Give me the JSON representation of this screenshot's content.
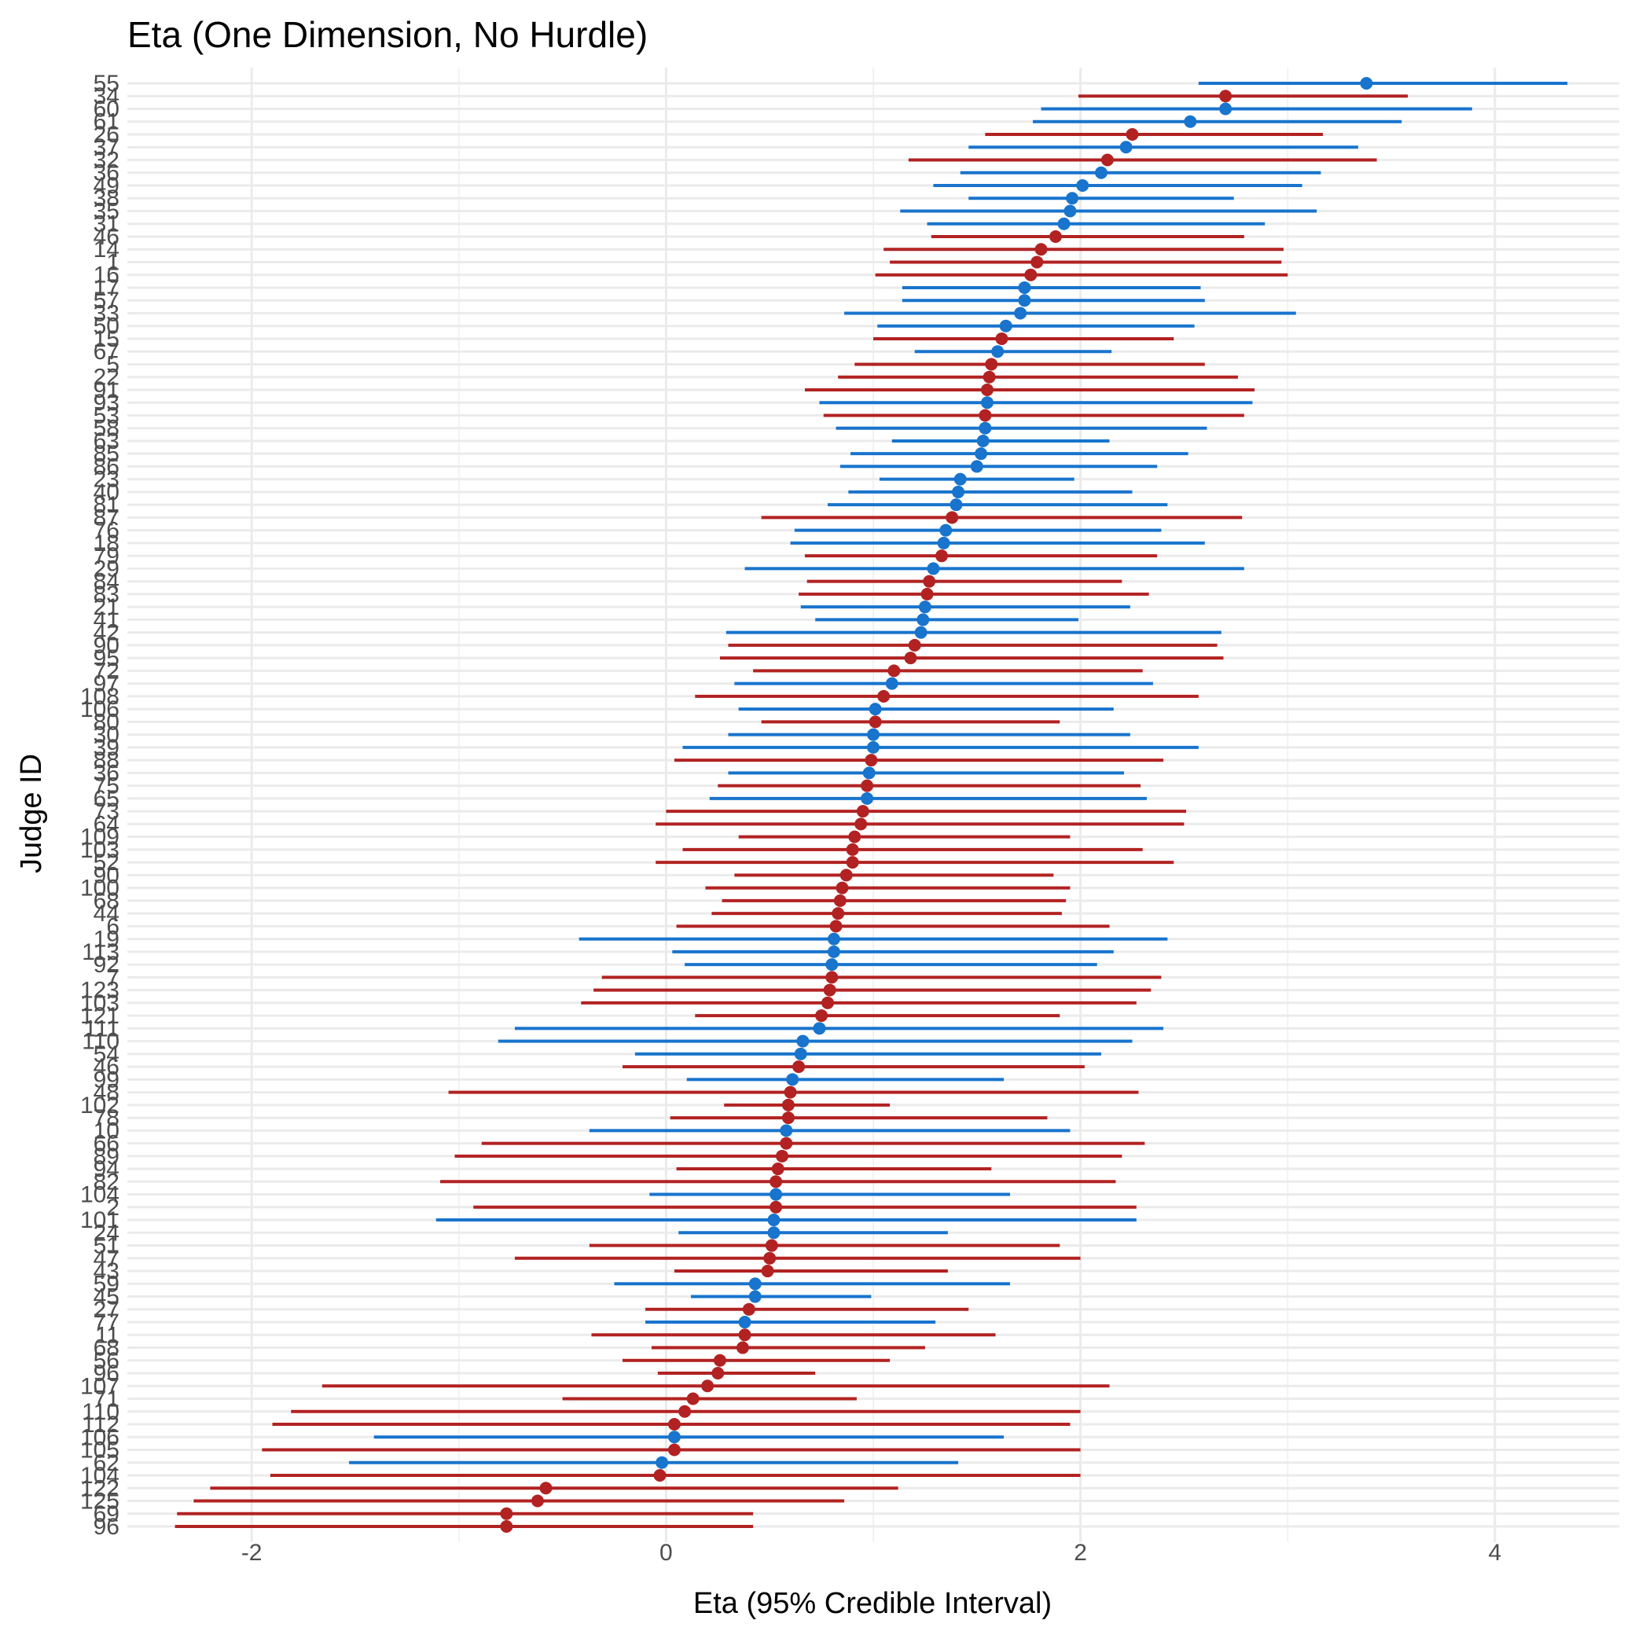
{
  "chart_data": {
    "type": "forest",
    "title": "Eta (One Dimension, No Hurdle)",
    "xlabel": "Eta (95% Credible Interval)",
    "ylabel": "Judge ID",
    "xlim": [
      -2.6,
      4.6
    ],
    "xticks": [
      -2,
      0,
      2,
      4
    ],
    "grid": true,
    "legend": "none",
    "colors": {
      "red": "#b22222",
      "blue": "#1874cd"
    },
    "points": [
      {
        "id": "55",
        "est": 3.38,
        "lo": 2.57,
        "hi": 4.35,
        "c": "blue"
      },
      {
        "id": "34",
        "est": 2.7,
        "lo": 1.99,
        "hi": 3.58,
        "c": "red"
      },
      {
        "id": "60",
        "est": 2.7,
        "lo": 1.81,
        "hi": 3.89,
        "c": "blue"
      },
      {
        "id": "61",
        "est": 2.53,
        "lo": 1.77,
        "hi": 3.55,
        "c": "blue"
      },
      {
        "id": "26",
        "est": 2.25,
        "lo": 1.54,
        "hi": 3.17,
        "c": "red"
      },
      {
        "id": "37",
        "est": 2.22,
        "lo": 1.46,
        "hi": 3.34,
        "c": "blue"
      },
      {
        "id": "32",
        "est": 2.13,
        "lo": 1.17,
        "hi": 3.43,
        "c": "red"
      },
      {
        "id": "36",
        "est": 2.1,
        "lo": 1.42,
        "hi": 3.16,
        "c": "blue"
      },
      {
        "id": "49",
        "est": 2.01,
        "lo": 1.29,
        "hi": 3.07,
        "c": "blue"
      },
      {
        "id": "38",
        "est": 1.96,
        "lo": 1.46,
        "hi": 2.74,
        "c": "blue"
      },
      {
        "id": "35",
        "est": 1.95,
        "lo": 1.13,
        "hi": 3.14,
        "c": "blue"
      },
      {
        "id": "31",
        "est": 1.92,
        "lo": 1.26,
        "hi": 2.89,
        "c": "blue"
      },
      {
        "id": "46",
        "est": 1.88,
        "lo": 1.28,
        "hi": 2.79,
        "c": "red"
      },
      {
        "id": "14",
        "est": 1.81,
        "lo": 1.05,
        "hi": 2.98,
        "c": "red"
      },
      {
        "id": "1",
        "est": 1.79,
        "lo": 1.08,
        "hi": 2.97,
        "c": "red"
      },
      {
        "id": "16",
        "est": 1.76,
        "lo": 1.01,
        "hi": 3.0,
        "c": "red"
      },
      {
        "id": "17",
        "est": 1.73,
        "lo": 1.14,
        "hi": 2.58,
        "c": "blue"
      },
      {
        "id": "57",
        "est": 1.73,
        "lo": 1.14,
        "hi": 2.6,
        "c": "blue"
      },
      {
        "id": "33",
        "est": 1.71,
        "lo": 0.86,
        "hi": 3.04,
        "c": "blue"
      },
      {
        "id": "50",
        "est": 1.64,
        "lo": 1.02,
        "hi": 2.55,
        "c": "blue"
      },
      {
        "id": "15",
        "est": 1.62,
        "lo": 1.0,
        "hi": 2.45,
        "c": "red"
      },
      {
        "id": "67",
        "est": 1.6,
        "lo": 1.2,
        "hi": 2.15,
        "c": "blue"
      },
      {
        "id": "5",
        "est": 1.57,
        "lo": 0.91,
        "hi": 2.6,
        "c": "red"
      },
      {
        "id": "22",
        "est": 1.56,
        "lo": 0.83,
        "hi": 2.76,
        "c": "red"
      },
      {
        "id": "91",
        "est": 1.55,
        "lo": 0.67,
        "hi": 2.84,
        "c": "red"
      },
      {
        "id": "93",
        "est": 1.55,
        "lo": 0.74,
        "hi": 2.83,
        "c": "blue"
      },
      {
        "id": "53",
        "est": 1.54,
        "lo": 0.76,
        "hi": 2.79,
        "c": "red"
      },
      {
        "id": "58",
        "est": 1.54,
        "lo": 0.82,
        "hi": 2.61,
        "c": "blue"
      },
      {
        "id": "63",
        "est": 1.53,
        "lo": 1.09,
        "hi": 2.14,
        "c": "blue"
      },
      {
        "id": "85",
        "est": 1.52,
        "lo": 0.89,
        "hi": 2.52,
        "c": "blue"
      },
      {
        "id": "86",
        "est": 1.5,
        "lo": 0.84,
        "hi": 2.37,
        "c": "blue"
      },
      {
        "id": "23",
        "est": 1.42,
        "lo": 1.03,
        "hi": 1.97,
        "c": "blue"
      },
      {
        "id": "40",
        "est": 1.41,
        "lo": 0.88,
        "hi": 2.25,
        "c": "blue"
      },
      {
        "id": "81",
        "est": 1.4,
        "lo": 0.78,
        "hi": 2.42,
        "c": "blue"
      },
      {
        "id": "87",
        "est": 1.38,
        "lo": 0.46,
        "hi": 2.78,
        "c": "red"
      },
      {
        "id": "76",
        "est": 1.35,
        "lo": 0.62,
        "hi": 2.39,
        "c": "blue"
      },
      {
        "id": "18",
        "est": 1.34,
        "lo": 0.6,
        "hi": 2.6,
        "c": "blue"
      },
      {
        "id": "79",
        "est": 1.33,
        "lo": 0.67,
        "hi": 2.37,
        "c": "red"
      },
      {
        "id": "29",
        "est": 1.29,
        "lo": 0.38,
        "hi": 2.79,
        "c": "blue"
      },
      {
        "id": "84",
        "est": 1.27,
        "lo": 0.68,
        "hi": 2.2,
        "c": "red"
      },
      {
        "id": "83",
        "est": 1.26,
        "lo": 0.64,
        "hi": 2.33,
        "c": "red"
      },
      {
        "id": "21",
        "est": 1.25,
        "lo": 0.65,
        "hi": 2.24,
        "c": "blue"
      },
      {
        "id": "41",
        "est": 1.24,
        "lo": 0.72,
        "hi": 1.99,
        "c": "blue"
      },
      {
        "id": "42",
        "est": 1.23,
        "lo": 0.29,
        "hi": 2.68,
        "c": "blue"
      },
      {
        "id": "90",
        "est": 1.2,
        "lo": 0.3,
        "hi": 2.66,
        "c": "red"
      },
      {
        "id": "95",
        "est": 1.18,
        "lo": 0.26,
        "hi": 2.69,
        "c": "red"
      },
      {
        "id": "72",
        "est": 1.1,
        "lo": 0.42,
        "hi": 2.3,
        "c": "red"
      },
      {
        "id": "97",
        "est": 1.09,
        "lo": 0.33,
        "hi": 2.35,
        "c": "blue"
      },
      {
        "id": "108",
        "est": 1.05,
        "lo": 0.14,
        "hi": 2.57,
        "c": "red"
      },
      {
        "id": "106",
        "est": 1.01,
        "lo": 0.35,
        "hi": 2.16,
        "c": "blue"
      },
      {
        "id": "80",
        "est": 1.01,
        "lo": 0.46,
        "hi": 1.9,
        "c": "red"
      },
      {
        "id": "30",
        "est": 1.0,
        "lo": 0.3,
        "hi": 2.24,
        "c": "blue"
      },
      {
        "id": "39",
        "est": 1.0,
        "lo": 0.08,
        "hi": 2.57,
        "c": "blue"
      },
      {
        "id": "88",
        "est": 0.99,
        "lo": 0.04,
        "hi": 2.4,
        "c": "red"
      },
      {
        "id": "36b",
        "label": "36",
        "est": 0.98,
        "lo": 0.3,
        "hi": 2.21,
        "c": "blue"
      },
      {
        "id": "75",
        "est": 0.97,
        "lo": 0.25,
        "hi": 2.29,
        "c": "red"
      },
      {
        "id": "65",
        "est": 0.97,
        "lo": 0.21,
        "hi": 2.32,
        "c": "blue"
      },
      {
        "id": "73",
        "est": 0.95,
        "lo": 0.0,
        "hi": 2.51,
        "c": "red"
      },
      {
        "id": "64",
        "est": 0.94,
        "lo": -0.05,
        "hi": 2.5,
        "c": "red"
      },
      {
        "id": "109",
        "est": 0.91,
        "lo": 0.35,
        "hi": 1.95,
        "c": "red"
      },
      {
        "id": "103",
        "est": 0.9,
        "lo": 0.08,
        "hi": 2.3,
        "c": "red"
      },
      {
        "id": "52",
        "est": 0.9,
        "lo": -0.05,
        "hi": 2.45,
        "c": "red"
      },
      {
        "id": "90b",
        "label": "90",
        "est": 0.87,
        "lo": 0.33,
        "hi": 1.87,
        "c": "red"
      },
      {
        "id": "100",
        "est": 0.85,
        "lo": 0.19,
        "hi": 1.95,
        "c": "red"
      },
      {
        "id": "68",
        "est": 0.84,
        "lo": 0.27,
        "hi": 1.93,
        "c": "red"
      },
      {
        "id": "44",
        "est": 0.83,
        "lo": 0.22,
        "hi": 1.91,
        "c": "red"
      },
      {
        "id": "6",
        "est": 0.82,
        "lo": 0.05,
        "hi": 2.14,
        "c": "red"
      },
      {
        "id": "19",
        "est": 0.81,
        "lo": -0.42,
        "hi": 2.42,
        "c": "blue"
      },
      {
        "id": "113",
        "est": 0.81,
        "lo": 0.03,
        "hi": 2.16,
        "c": "blue"
      },
      {
        "id": "92",
        "est": 0.8,
        "lo": 0.09,
        "hi": 2.08,
        "c": "blue"
      },
      {
        "id": "7",
        "est": 0.8,
        "lo": -0.31,
        "hi": 2.39,
        "c": "red"
      },
      {
        "id": "123",
        "est": 0.79,
        "lo": -0.35,
        "hi": 2.34,
        "c": "red"
      },
      {
        "id": "103b",
        "label": "103",
        "est": 0.78,
        "lo": -0.41,
        "hi": 2.27,
        "c": "red"
      },
      {
        "id": "121",
        "est": 0.75,
        "lo": 0.14,
        "hi": 1.9,
        "c": "red"
      },
      {
        "id": "111",
        "est": 0.74,
        "lo": -0.73,
        "hi": 2.4,
        "c": "blue"
      },
      {
        "id": "110",
        "est": 0.66,
        "lo": -0.81,
        "hi": 2.25,
        "c": "blue"
      },
      {
        "id": "54",
        "est": 0.65,
        "lo": -0.15,
        "hi": 2.1,
        "c": "blue"
      },
      {
        "id": "46b",
        "label": "46",
        "est": 0.64,
        "lo": -0.21,
        "hi": 2.02,
        "c": "red"
      },
      {
        "id": "99",
        "est": 0.61,
        "lo": 0.1,
        "hi": 1.63,
        "c": "blue"
      },
      {
        "id": "48",
        "est": 0.6,
        "lo": -1.05,
        "hi": 2.28,
        "c": "red"
      },
      {
        "id": "102",
        "est": 0.59,
        "lo": 0.28,
        "hi": 1.08,
        "c": "red"
      },
      {
        "id": "78",
        "est": 0.59,
        "lo": 0.02,
        "hi": 1.84,
        "c": "red"
      },
      {
        "id": "10",
        "est": 0.58,
        "lo": -0.37,
        "hi": 1.95,
        "c": "blue"
      },
      {
        "id": "66",
        "est": 0.58,
        "lo": -0.89,
        "hi": 2.31,
        "c": "red"
      },
      {
        "id": "89",
        "est": 0.56,
        "lo": -1.02,
        "hi": 2.2,
        "c": "red"
      },
      {
        "id": "94",
        "est": 0.54,
        "lo": 0.05,
        "hi": 1.57,
        "c": "red"
      },
      {
        "id": "82",
        "est": 0.53,
        "lo": -1.09,
        "hi": 2.17,
        "c": "red"
      },
      {
        "id": "104",
        "est": 0.53,
        "lo": -0.08,
        "hi": 1.66,
        "c": "blue"
      },
      {
        "id": "2",
        "est": 0.53,
        "lo": -0.93,
        "hi": 2.27,
        "c": "red"
      },
      {
        "id": "101",
        "est": 0.52,
        "lo": -1.11,
        "hi": 2.27,
        "c": "blue"
      },
      {
        "id": "24",
        "est": 0.52,
        "lo": 0.06,
        "hi": 1.36,
        "c": "blue"
      },
      {
        "id": "51",
        "est": 0.51,
        "lo": -0.37,
        "hi": 1.9,
        "c": "red"
      },
      {
        "id": "47",
        "est": 0.5,
        "lo": -0.73,
        "hi": 2.0,
        "c": "red"
      },
      {
        "id": "43",
        "est": 0.49,
        "lo": 0.04,
        "hi": 1.36,
        "c": "red"
      },
      {
        "id": "59",
        "est": 0.43,
        "lo": -0.25,
        "hi": 1.66,
        "c": "blue"
      },
      {
        "id": "45",
        "est": 0.43,
        "lo": 0.12,
        "hi": 0.99,
        "c": "blue"
      },
      {
        "id": "27",
        "est": 0.4,
        "lo": -0.1,
        "hi": 1.46,
        "c": "red"
      },
      {
        "id": "77",
        "est": 0.38,
        "lo": -0.1,
        "hi": 1.3,
        "c": "blue"
      },
      {
        "id": "11",
        "est": 0.38,
        "lo": -0.36,
        "hi": 1.59,
        "c": "red"
      },
      {
        "id": "68b",
        "label": "68",
        "est": 0.37,
        "lo": -0.07,
        "hi": 1.25,
        "c": "red"
      },
      {
        "id": "56",
        "est": 0.26,
        "lo": -0.21,
        "hi": 1.08,
        "c": "red"
      },
      {
        "id": "96b",
        "label": "96",
        "est": 0.25,
        "lo": -0.04,
        "hi": 0.72,
        "c": "red"
      },
      {
        "id": "107",
        "est": 0.2,
        "lo": -1.66,
        "hi": 2.14,
        "c": "red"
      },
      {
        "id": "71",
        "est": 0.13,
        "lo": -0.5,
        "hi": 0.92,
        "c": "red"
      },
      {
        "id": "110b",
        "label": "110",
        "est": 0.09,
        "lo": -1.81,
        "hi": 2.0,
        "c": "red"
      },
      {
        "id": "112",
        "est": 0.04,
        "lo": -1.9,
        "hi": 1.95,
        "c": "red"
      },
      {
        "id": "106b",
        "label": "106",
        "est": 0.04,
        "lo": -1.41,
        "hi": 1.63,
        "c": "blue"
      },
      {
        "id": "105",
        "est": 0.04,
        "lo": -1.95,
        "hi": 2.0,
        "c": "red"
      },
      {
        "id": "62",
        "est": -0.02,
        "lo": -1.53,
        "hi": 1.41,
        "c": "blue"
      },
      {
        "id": "104b",
        "label": "104",
        "est": -0.03,
        "lo": -1.91,
        "hi": 2.0,
        "c": "red"
      },
      {
        "id": "122",
        "est": -0.58,
        "lo": -2.2,
        "hi": 1.12,
        "c": "red"
      },
      {
        "id": "125",
        "est": -0.62,
        "lo": -2.28,
        "hi": 0.86,
        "c": "red"
      },
      {
        "id": "69",
        "est": -0.77,
        "lo": -2.36,
        "hi": 0.42,
        "c": "red"
      },
      {
        "id": "96",
        "est": -0.77,
        "lo": -2.37,
        "hi": 0.42,
        "c": "red"
      }
    ]
  }
}
